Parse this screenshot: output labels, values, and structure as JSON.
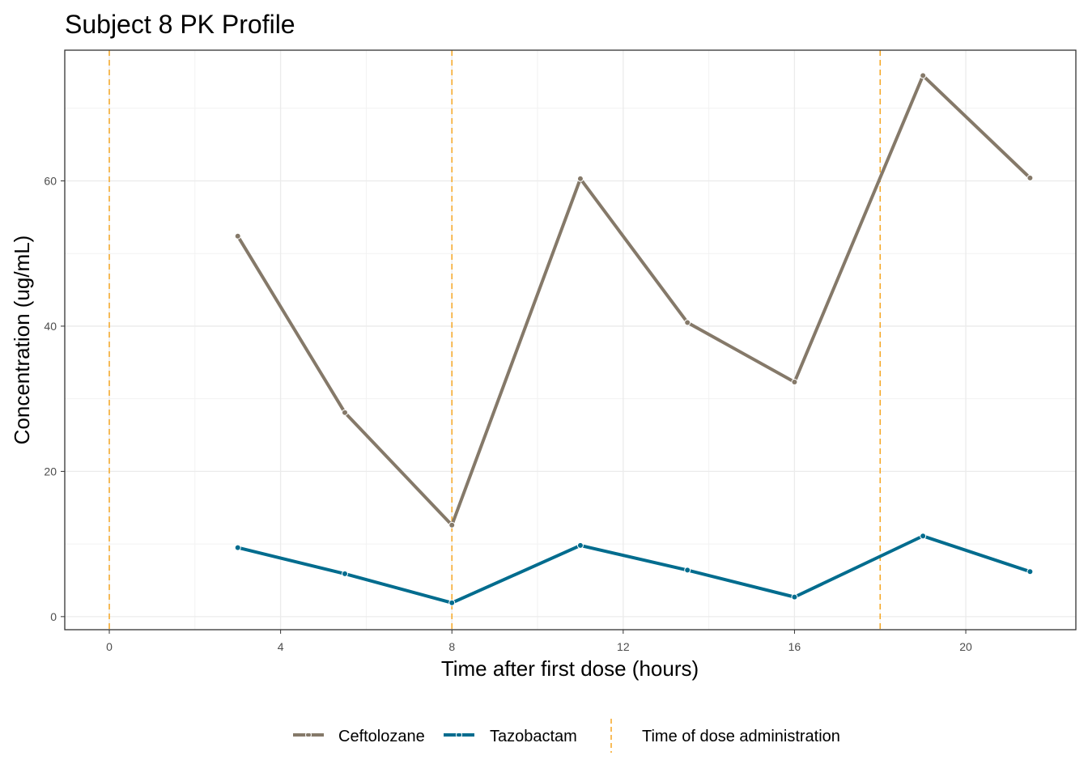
{
  "chart_data": {
    "type": "line",
    "title": "Subject 8 PK Profile",
    "xlabel": "Time after first dose (hours)",
    "ylabel": "Concentration (ug/mL)",
    "xlim": [
      -1.04,
      22.57
    ],
    "ylim": [
      -1.8,
      78
    ],
    "xticks": [
      0,
      4,
      8,
      12,
      16,
      20
    ],
    "yticks": [
      0,
      20,
      40,
      60
    ],
    "grid": true,
    "legend_position": "bottom",
    "series": [
      {
        "name": "Ceftolozane",
        "color": "#857969",
        "x": [
          3,
          5.5,
          8,
          11,
          13.5,
          16,
          19,
          21.5
        ],
        "y": [
          52.4,
          28.1,
          12.6,
          60.3,
          40.5,
          32.3,
          74.5,
          60.4
        ]
      },
      {
        "name": "Tazobactam",
        "color": "#006C8E",
        "x": [
          3,
          5.5,
          8,
          11,
          13.5,
          16,
          19,
          21.5
        ],
        "y": [
          9.5,
          5.9,
          1.9,
          9.8,
          6.4,
          2.7,
          11.1,
          6.2
        ]
      }
    ],
    "dose_lines": {
      "label": "Time of dose administration",
      "color": "#F5A623",
      "x": [
        0,
        8,
        18
      ]
    }
  }
}
